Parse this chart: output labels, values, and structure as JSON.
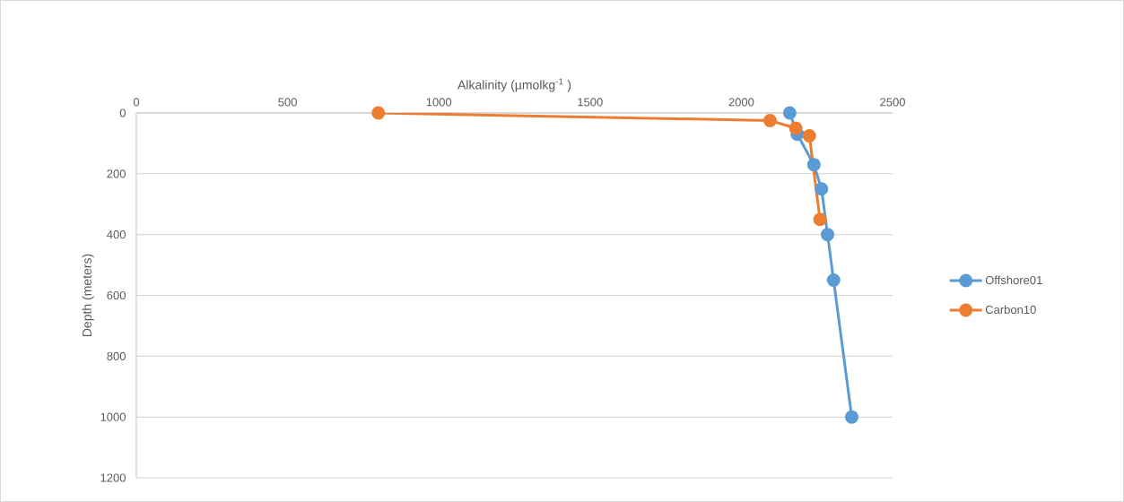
{
  "chart_data": {
    "type": "line",
    "xlabel": "Alkalinity (µmolkg$^{-1}$ )",
    "ylabel": "Depth (meters)",
    "series": [
      {
        "name": "Offshore01",
        "color": "#5b9bd5",
        "x": [
          2160,
          2185,
          2240,
          2265,
          2285,
          2305,
          2365
        ],
        "values": [
          0,
          70,
          170,
          250,
          400,
          550,
          1000
        ]
      },
      {
        "name": "Carbon10",
        "color": "#ed7d31",
        "x": [
          800,
          2095,
          2180,
          2225,
          2260
        ],
        "values": [
          0,
          25,
          50,
          75,
          350
        ]
      }
    ],
    "xlim": [
      0,
      2500
    ],
    "xticks": [
      0,
      500,
      1000,
      1500,
      2000,
      2500
    ],
    "ylim": [
      1200,
      0
    ],
    "yticks": [
      0,
      200,
      400,
      600,
      800,
      1000,
      1200
    ],
    "grid": "y",
    "legend": "right",
    "marker": "circle",
    "line_style": "solid"
  }
}
